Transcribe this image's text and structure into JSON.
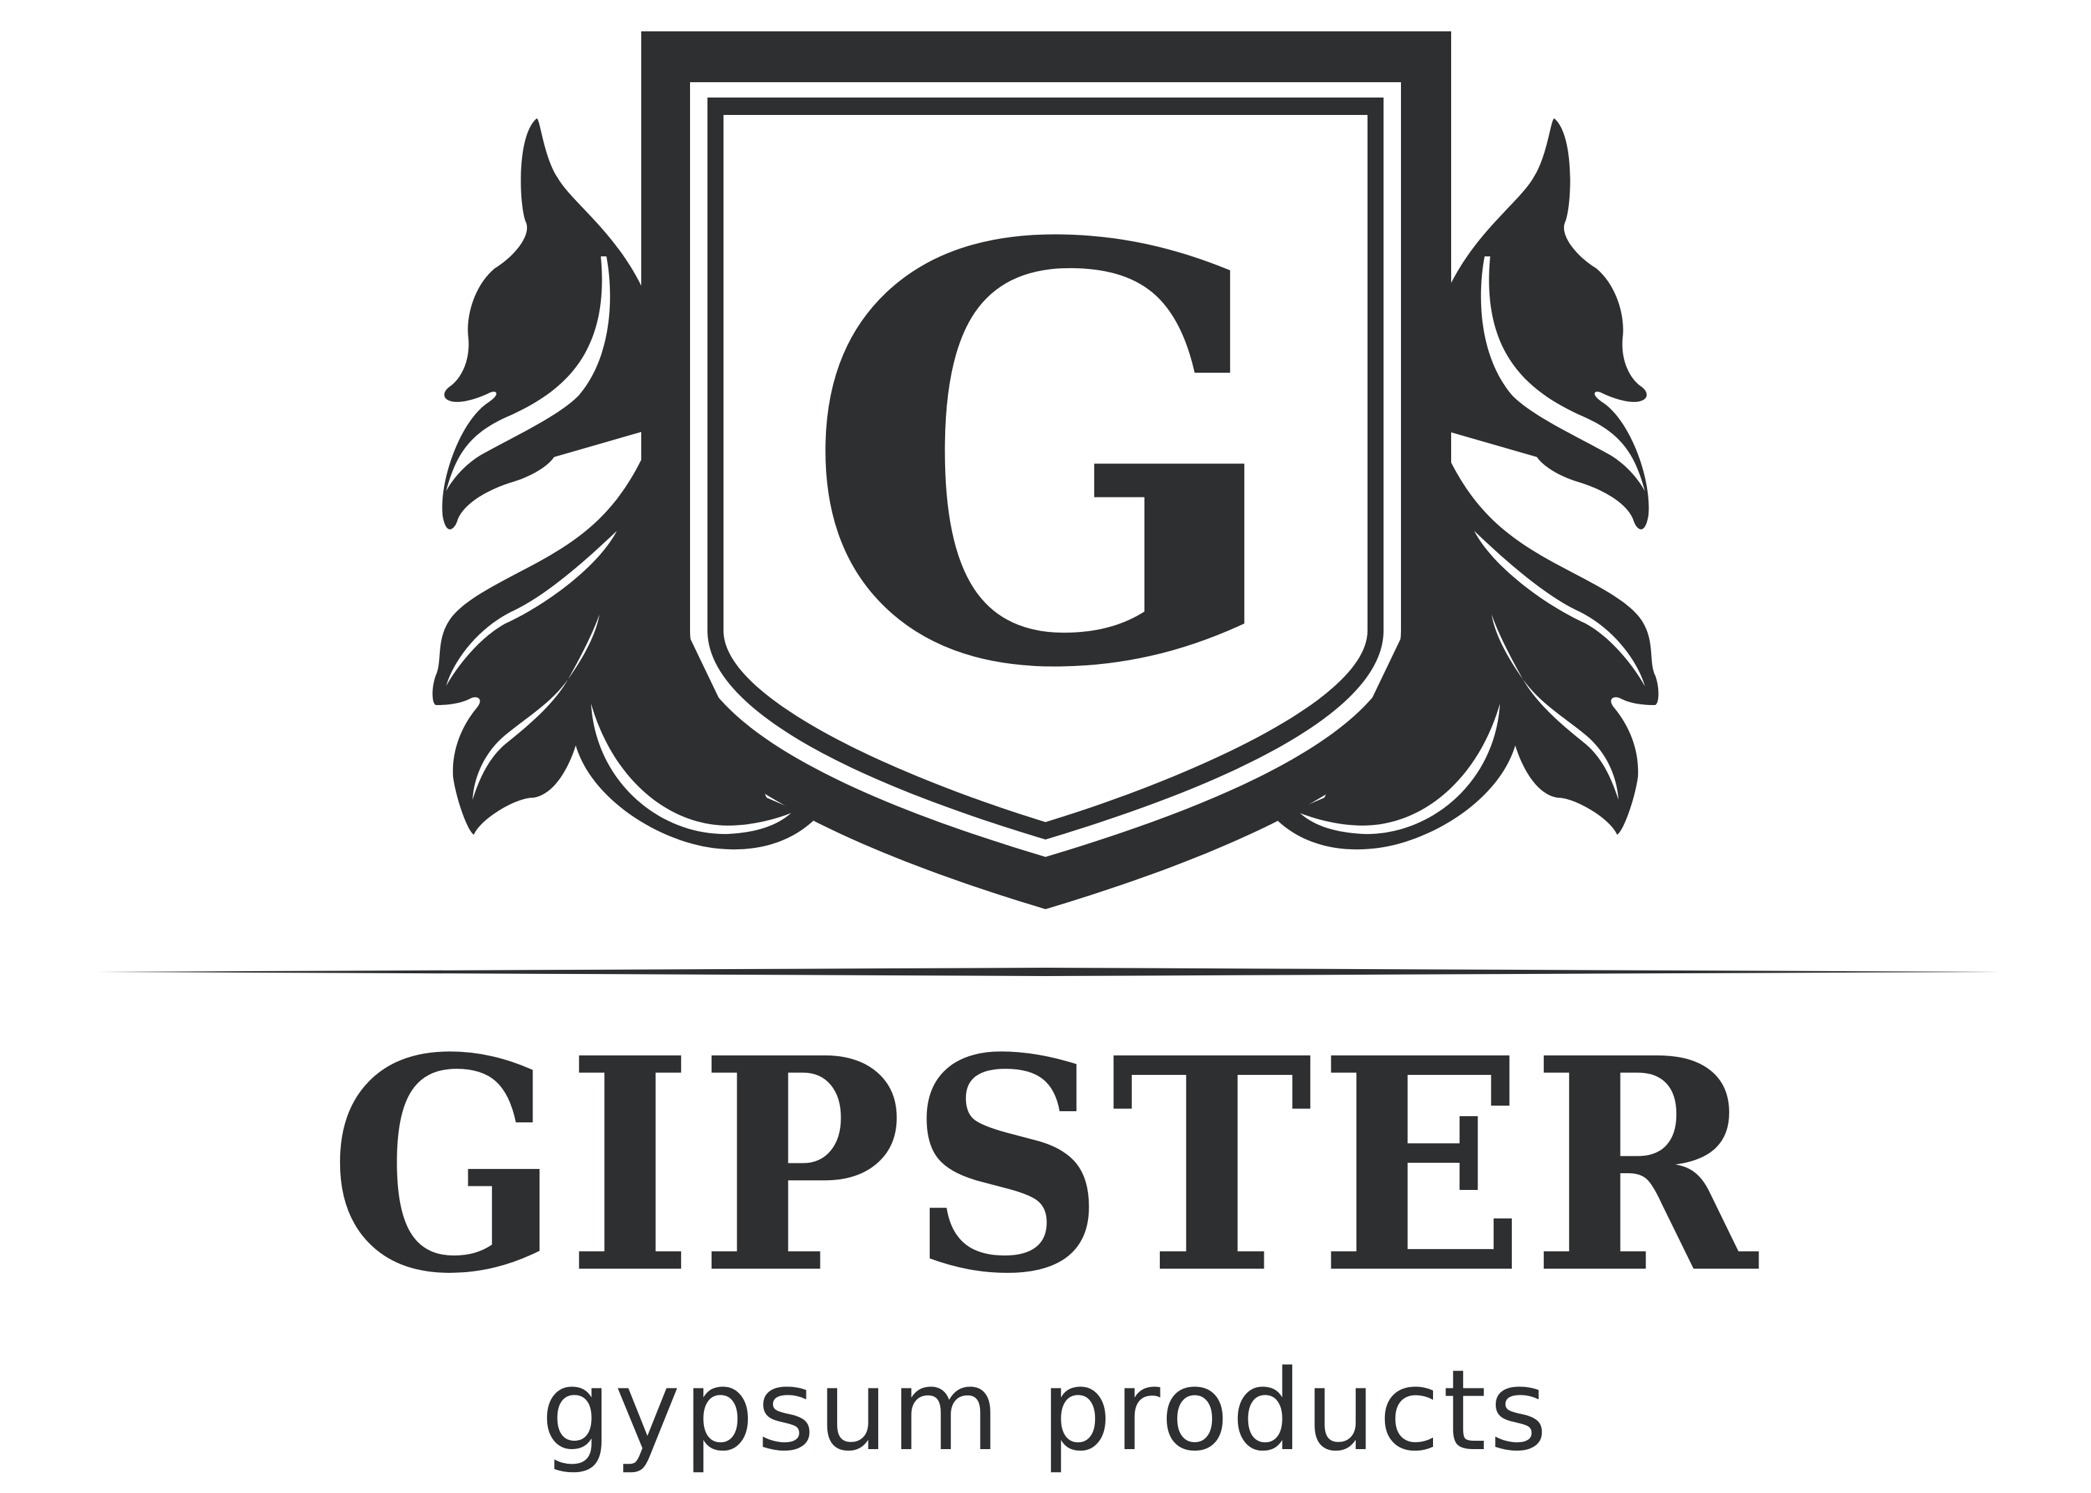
{
  "logo": {
    "monogram": "G",
    "brand_name": "GIPSTER",
    "tagline": "gypsum products",
    "colors": {
      "ink": "#2e2f31",
      "background": "#ffffff"
    },
    "icons": [
      "shield-crest-icon",
      "left-leaf-ornament-icon",
      "right-leaf-ornament-icon"
    ]
  }
}
